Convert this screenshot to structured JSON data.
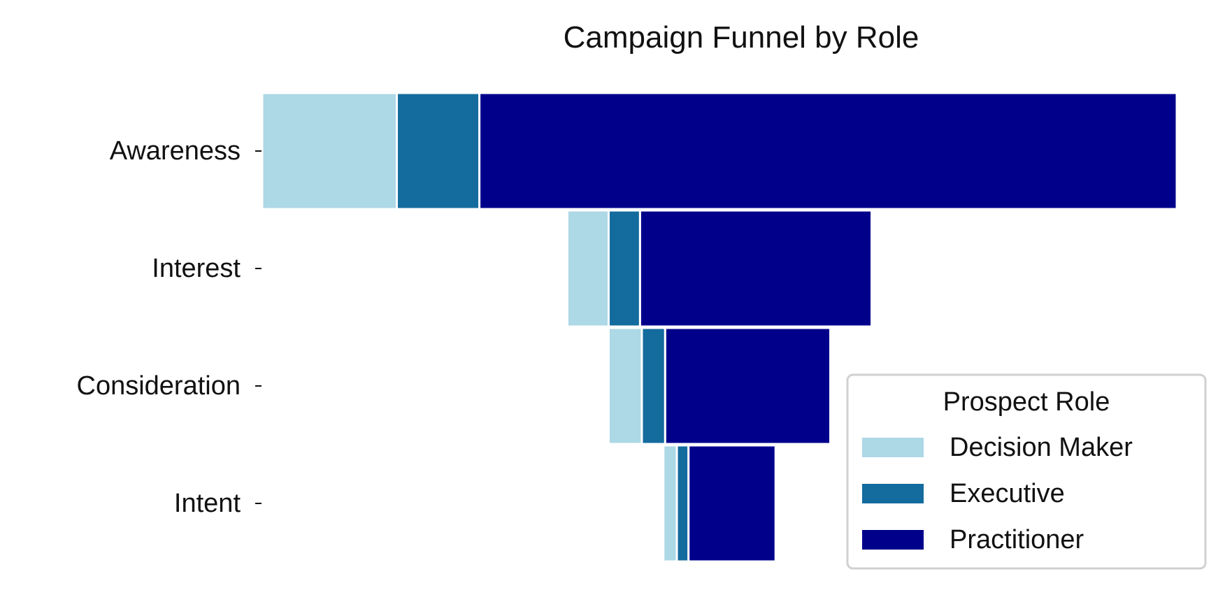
{
  "chart_data": {
    "type": "bar",
    "orientation": "horizontal",
    "stacked": true,
    "centered": true,
    "title": "Campaign Funnel by Role",
    "categories": [
      "Awareness",
      "Interest",
      "Consideration",
      "Intent"
    ],
    "series": [
      {
        "name": "Decision Maker",
        "color": "#add8e6",
        "values": [
          1500,
          460,
          370,
          150
        ]
      },
      {
        "name": "Executive",
        "color": "#136b9e",
        "values": [
          920,
          350,
          260,
          130
        ]
      },
      {
        "name": "Practitioner",
        "color": "#00008b",
        "values": [
          7770,
          2580,
          1840,
          970
        ]
      }
    ],
    "legend": {
      "title": "Prospect Role",
      "position": "lower-right"
    },
    "grid": false,
    "x_axis_visible": false
  },
  "colors": {
    "bar_edge": "#ffffff",
    "legend_border": "#d0d0d0"
  }
}
